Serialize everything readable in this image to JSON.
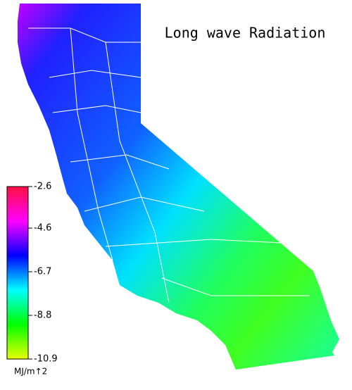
{
  "title": "Long wave Radiation",
  "colorbar": {
    "lim": [
      -2.6,
      -10.9
    ],
    "ticks": [
      -2.6,
      -4.6,
      -6.7,
      -8.8,
      -10.9
    ],
    "colors": [
      "#ff1040",
      "#ff00ff",
      "#0000ff",
      "#00ffff",
      "#00ff00",
      "#e8ff00"
    ],
    "unit": "MJ/m↑2"
  }
}
